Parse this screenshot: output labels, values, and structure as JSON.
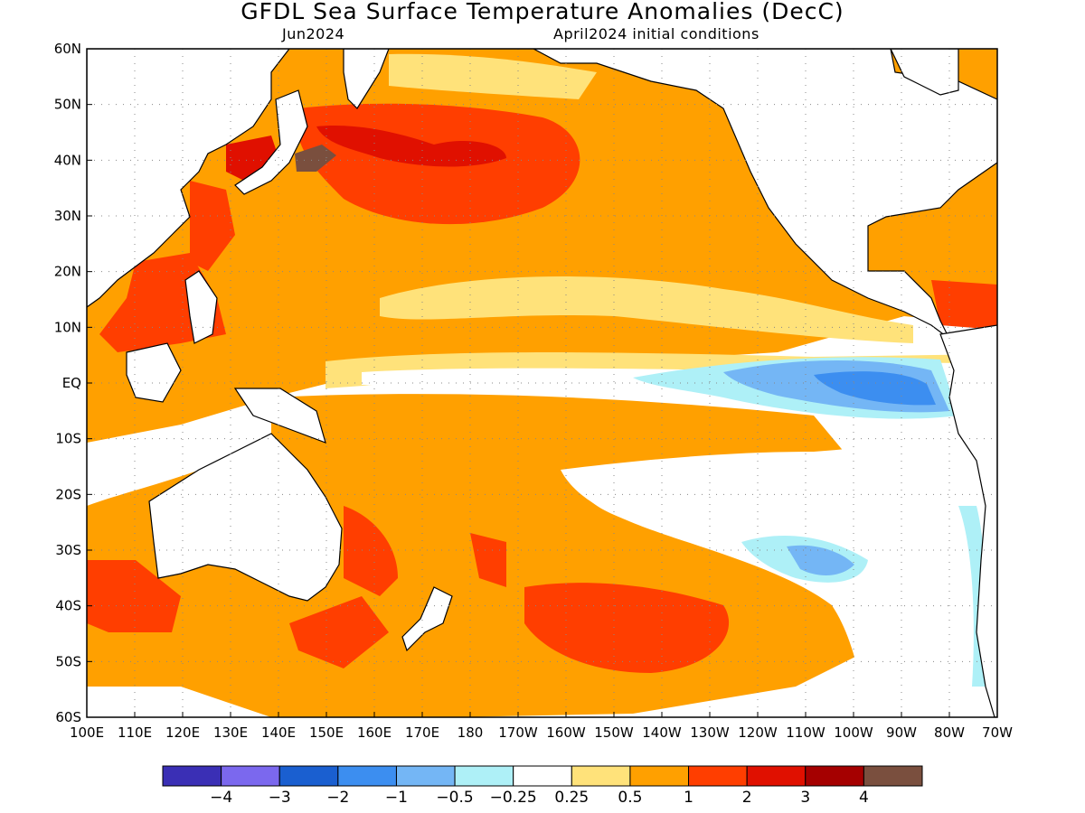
{
  "header": {
    "title": "GFDL Sea Surface Temperature Anomalies (DecC)",
    "valid_month": "Jun2024",
    "init_conditions": "April2024 initial conditions"
  },
  "map": {
    "lat_labels": [
      "60N",
      "50N",
      "40N",
      "30N",
      "20N",
      "10N",
      "EQ",
      "10S",
      "20S",
      "30S",
      "40S",
      "50S",
      "60S"
    ],
    "lon_labels": [
      "100E",
      "110E",
      "120E",
      "130E",
      "140E",
      "150E",
      "160E",
      "170E",
      "180",
      "170W",
      "160W",
      "150W",
      "140W",
      "130W",
      "120W",
      "110W",
      "100W",
      "90W",
      "80W",
      "70W"
    ],
    "lat_range": [
      -60,
      60
    ],
    "lon_range_east": [
      100,
      290
    ],
    "grid": "dotted"
  },
  "colorbar": {
    "colors": [
      "#3a2fb5",
      "#7b68ee",
      "#1a5fd0",
      "#3c8ef0",
      "#74b6f5",
      "#aef0f7",
      "#ffffff",
      "#ffe27a",
      "#ffa000",
      "#ff3e00",
      "#e01000",
      "#a50000",
      "#7a4f3e"
    ],
    "labels": [
      "−4",
      "−3",
      "−2",
      "−1",
      "−0.5",
      "−0.25",
      "0.25",
      "0.5",
      "1",
      "2",
      "3",
      "4"
    ]
  },
  "regions": [
    {
      "name": "north-pacific-warm-belt",
      "color": "#ffa000"
    },
    {
      "name": "kuroshio-extension-hotspot",
      "color": "#ff3e00"
    },
    {
      "name": "japan-east-extreme",
      "color": "#7a4f3e"
    },
    {
      "name": "equatorial-cold-tongue",
      "color": "#74b6f5"
    },
    {
      "name": "southern-ocean-warm",
      "color": "#ff3e00"
    },
    {
      "name": "southeast-pacific-neutral",
      "color": "#ffffff"
    }
  ]
}
